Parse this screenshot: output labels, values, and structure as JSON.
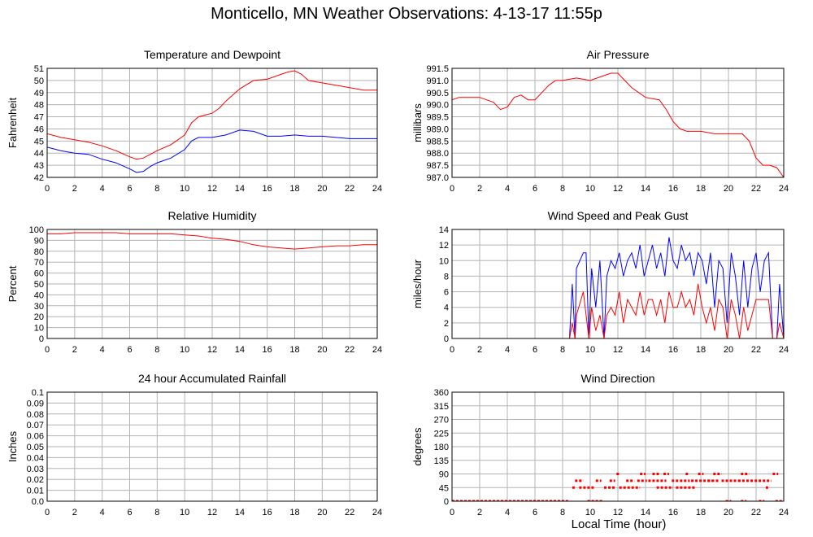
{
  "title": "Monticello, MN Weather Observations: 4-13-17 11:55p",
  "x_axis_label": "Local Time (hour)",
  "colors": {
    "red": "#ff0000",
    "blue": "#0000ff",
    "grid": "#b3b3b3",
    "frame": "#000000"
  },
  "chart_data": [
    {
      "id": "temp",
      "type": "line",
      "title": "Temperature and Dewpoint",
      "ylabel": "Fahrenheit",
      "xlim": [
        0,
        24
      ],
      "ylim": [
        42,
        51
      ],
      "xticks": [
        "0",
        "2",
        "4",
        "6",
        "8",
        "10",
        "12",
        "14",
        "16",
        "18",
        "20",
        "22",
        "24"
      ],
      "yticks": [
        "42",
        "43",
        "44",
        "45",
        "46",
        "47",
        "48",
        "49",
        "50",
        "51"
      ],
      "grid": true,
      "series": [
        {
          "color": "red",
          "x": [
            0,
            1,
            2,
            3,
            4,
            5,
            6,
            6.5,
            7,
            7.5,
            8,
            9,
            10,
            10.5,
            11,
            12,
            12.5,
            13,
            14,
            15,
            16,
            17,
            17.5,
            18,
            18.5,
            19,
            20,
            21,
            22,
            23,
            24
          ],
          "y": [
            45.6,
            45.3,
            45.1,
            44.9,
            44.6,
            44.2,
            43.7,
            43.5,
            43.6,
            43.9,
            44.2,
            44.7,
            45.5,
            46.5,
            47.0,
            47.3,
            47.7,
            48.3,
            49.3,
            50.0,
            50.1,
            50.5,
            50.7,
            50.8,
            50.5,
            50.0,
            49.8,
            49.6,
            49.4,
            49.2,
            49.2
          ]
        },
        {
          "color": "blue",
          "x": [
            0,
            1,
            2,
            3,
            4,
            5,
            6,
            6.5,
            7,
            7.5,
            8,
            9,
            10,
            10.5,
            11,
            12,
            13,
            14,
            15,
            16,
            17,
            18,
            19,
            20,
            21,
            22,
            23,
            24
          ],
          "y": [
            44.5,
            44.2,
            44.0,
            43.9,
            43.5,
            43.2,
            42.7,
            42.4,
            42.5,
            42.9,
            43.2,
            43.6,
            44.3,
            45.0,
            45.3,
            45.3,
            45.5,
            45.9,
            45.8,
            45.4,
            45.4,
            45.5,
            45.4,
            45.4,
            45.3,
            45.2,
            45.2,
            45.2
          ]
        }
      ]
    },
    {
      "id": "pressure",
      "type": "line",
      "title": "Air Pressure",
      "ylabel": "millibars",
      "xlim": [
        0,
        24
      ],
      "ylim": [
        987.0,
        991.5
      ],
      "xticks": [
        "0",
        "2",
        "4",
        "6",
        "8",
        "10",
        "12",
        "14",
        "16",
        "18",
        "20",
        "22",
        "24"
      ],
      "yticks": [
        "987.0",
        "987.5",
        "988.0",
        "988.5",
        "989.0",
        "989.5",
        "990.0",
        "990.5",
        "991.0",
        "991.5"
      ],
      "grid": true,
      "series": [
        {
          "color": "red",
          "x": [
            0,
            0.5,
            1,
            2,
            3,
            3.5,
            4,
            4.5,
            5,
            5.5,
            6,
            6.5,
            7,
            7.5,
            8,
            9,
            10,
            11,
            11.5,
            12,
            12.5,
            13,
            14,
            15,
            15.5,
            16,
            16.5,
            17,
            17.5,
            18,
            19,
            20,
            21,
            21.5,
            22,
            22.5,
            23,
            23.5,
            24
          ],
          "y": [
            990.2,
            990.3,
            990.3,
            990.3,
            990.1,
            989.8,
            989.9,
            990.3,
            990.4,
            990.2,
            990.2,
            990.5,
            990.8,
            991.0,
            991.0,
            991.1,
            991.0,
            991.2,
            991.3,
            991.3,
            991.0,
            990.7,
            990.3,
            990.2,
            989.8,
            989.3,
            989.0,
            988.9,
            988.9,
            988.9,
            988.8,
            988.8,
            988.8,
            988.5,
            987.8,
            987.5,
            987.5,
            987.4,
            987.0
          ]
        }
      ]
    },
    {
      "id": "humidity",
      "type": "line",
      "title": "Relative Humidity",
      "ylabel": "Percent",
      "xlim": [
        0,
        24
      ],
      "ylim": [
        0,
        100
      ],
      "xticks": [
        "0",
        "2",
        "4",
        "6",
        "8",
        "10",
        "12",
        "14",
        "16",
        "18",
        "20",
        "22",
        "24"
      ],
      "yticks": [
        "0",
        "10",
        "20",
        "30",
        "40",
        "50",
        "60",
        "70",
        "80",
        "90",
        "100"
      ],
      "grid": true,
      "series": [
        {
          "color": "red",
          "x": [
            0,
            1,
            2,
            3,
            4,
            5,
            6,
            7,
            8,
            9,
            10,
            11,
            12,
            13,
            14,
            15,
            16,
            17,
            18,
            19,
            20,
            21,
            22,
            23,
            24
          ],
          "y": [
            96,
            96,
            97,
            97,
            97,
            97,
            96,
            96,
            96,
            96,
            95,
            94,
            92,
            91,
            89,
            86,
            84,
            83,
            82,
            83,
            84,
            85,
            85,
            86,
            86
          ]
        }
      ]
    },
    {
      "id": "wind",
      "type": "line",
      "title": "Wind Speed and Peak Gust",
      "ylabel": "miles/hour",
      "xlim": [
        0,
        24
      ],
      "ylim": [
        0,
        14
      ],
      "xticks": [
        "0",
        "2",
        "4",
        "6",
        "8",
        "10",
        "12",
        "14",
        "16",
        "18",
        "20",
        "22",
        "24"
      ],
      "yticks": [
        "0",
        "2",
        "4",
        "6",
        "8",
        "10",
        "12",
        "14"
      ],
      "grid": true,
      "series": [
        {
          "color": "blue",
          "x": [
            0,
            8.5,
            8.7,
            8.9,
            9.0,
            9.5,
            9.7,
            9.9,
            10.1,
            10.4,
            10.7,
            11.0,
            11.2,
            11.5,
            11.8,
            12.1,
            12.4,
            12.7,
            13.0,
            13.3,
            13.6,
            13.9,
            14.2,
            14.5,
            14.8,
            15.1,
            15.4,
            15.7,
            16.0,
            16.3,
            16.6,
            16.9,
            17.2,
            17.5,
            17.8,
            18.1,
            18.4,
            18.7,
            19.0,
            19.3,
            19.6,
            19.9,
            20.2,
            20.5,
            20.8,
            21.1,
            21.4,
            21.7,
            22.0,
            22.3,
            22.6,
            22.9,
            23.2,
            23.5,
            23.7,
            24
          ],
          "y": [
            0,
            0,
            7,
            0,
            9,
            11,
            11,
            0,
            9,
            4,
            10,
            0,
            8,
            10,
            9,
            11,
            8,
            10,
            11,
            9,
            12,
            8,
            10,
            12,
            9,
            11,
            8,
            13,
            10,
            9,
            12,
            10,
            11,
            8,
            11,
            10,
            7,
            11,
            4,
            10,
            9,
            2,
            11,
            8,
            3,
            10,
            4,
            9,
            11,
            6,
            10,
            11,
            0,
            0,
            7,
            0
          ]
        },
        {
          "color": "red",
          "x": [
            0,
            8.5,
            8.7,
            8.9,
            9.0,
            9.5,
            9.7,
            9.9,
            10.1,
            10.4,
            10.7,
            11.0,
            11.2,
            11.5,
            11.8,
            12.1,
            12.4,
            12.7,
            13.0,
            13.3,
            13.6,
            13.9,
            14.2,
            14.5,
            14.8,
            15.1,
            15.4,
            15.7,
            16.0,
            16.3,
            16.6,
            16.9,
            17.2,
            17.5,
            17.8,
            18.1,
            18.4,
            18.7,
            19.0,
            19.3,
            19.6,
            19.9,
            20.2,
            20.5,
            20.8,
            21.1,
            21.4,
            21.7,
            22.0,
            22.3,
            22.6,
            22.9,
            23.2,
            23.5,
            23.7,
            24
          ],
          "y": [
            0,
            0,
            2,
            0,
            3,
            6,
            3,
            0,
            4,
            1,
            3,
            0,
            3,
            4,
            3,
            6,
            2,
            5,
            4,
            3,
            6,
            3,
            5,
            5,
            3,
            5,
            2,
            6,
            4,
            4,
            6,
            4,
            5,
            3,
            7,
            4,
            2,
            4,
            1,
            5,
            4,
            0,
            5,
            3,
            0,
            4,
            1,
            3,
            5,
            5,
            5,
            5,
            0,
            0,
            2,
            0
          ]
        }
      ]
    },
    {
      "id": "rain",
      "type": "line",
      "title": "24 hour Accumulated Rainfall",
      "ylabel": "Inches",
      "xlim": [
        0,
        24
      ],
      "ylim": [
        0,
        0.1
      ],
      "xticks": [
        "0",
        "2",
        "4",
        "6",
        "8",
        "10",
        "12",
        "14",
        "16",
        "18",
        "20",
        "22",
        "24"
      ],
      "yticks": [
        "0.0",
        "0.01",
        "0.02",
        "0.03",
        "0.04",
        "0.05",
        "0.06",
        "0.07",
        "0.08",
        "0.09",
        "0.1"
      ],
      "grid": true,
      "series": [
        {
          "color": "blue",
          "x": [
            0,
            24
          ],
          "y": [
            0,
            0
          ]
        },
        {
          "color": "red",
          "x": [
            0,
            24
          ],
          "y": [
            0,
            0
          ]
        }
      ]
    },
    {
      "id": "direction",
      "type": "scatter",
      "title": "Wind Direction",
      "ylabel": "degrees",
      "xlim": [
        0,
        24
      ],
      "ylim": [
        0,
        360
      ],
      "xticks": [
        "0",
        "2",
        "4",
        "6",
        "8",
        "10",
        "12",
        "14",
        "16",
        "18",
        "20",
        "22",
        "24"
      ],
      "yticks": [
        "0",
        "45",
        "90",
        "135",
        "180",
        "225",
        "270",
        "315",
        "360"
      ],
      "grid": true,
      "series": [
        {
          "color": "red",
          "segments": [
            {
              "x0": 0,
              "x1": 8.4,
              "y": 0
            },
            {
              "x0": 8.9,
              "x1": 9.5,
              "y": 67.5
            },
            {
              "x0": 8.7,
              "x1": 8.9,
              "y": 45
            },
            {
              "x0": 9.2,
              "x1": 10.3,
              "y": 45
            },
            {
              "x0": 9.8,
              "x1": 10.9,
              "y": 0
            },
            {
              "x0": 10.4,
              "x1": 10.8,
              "y": 67.5
            },
            {
              "x0": 11.0,
              "x1": 11.8,
              "y": 45
            },
            {
              "x0": 11.4,
              "x1": 11.8,
              "y": 67.5
            },
            {
              "x0": 11.9,
              "x1": 12.1,
              "y": 90
            },
            {
              "x0": 12.1,
              "x1": 13.6,
              "y": 45
            },
            {
              "x0": 12.6,
              "x1": 13.2,
              "y": 67.5
            },
            {
              "x0": 13.4,
              "x1": 14.1,
              "y": 67.5
            },
            {
              "x0": 13.6,
              "x1": 14.0,
              "y": 90
            },
            {
              "x0": 14.2,
              "x1": 15.5,
              "y": 67.5
            },
            {
              "x0": 14.5,
              "x1": 15.0,
              "y": 90
            },
            {
              "x0": 14.8,
              "x1": 16.0,
              "y": 45
            },
            {
              "x0": 15.3,
              "x1": 15.7,
              "y": 90
            },
            {
              "x0": 15.9,
              "x1": 17.2,
              "y": 67.5
            },
            {
              "x0": 16.2,
              "x1": 17.6,
              "y": 45
            },
            {
              "x0": 16.9,
              "x1": 17.1,
              "y": 90
            },
            {
              "x0": 17.3,
              "x1": 18.8,
              "y": 67.5
            },
            {
              "x0": 17.8,
              "x1": 18.2,
              "y": 90
            },
            {
              "x0": 18.5,
              "x1": 19.3,
              "y": 67.5
            },
            {
              "x0": 18.9,
              "x1": 19.5,
              "y": 90
            },
            {
              "x0": 19.5,
              "x1": 20.7,
              "y": 67.5
            },
            {
              "x0": 19.8,
              "x1": 20.2,
              "y": 0
            },
            {
              "x0": 20.7,
              "x1": 21.6,
              "y": 67.5
            },
            {
              "x0": 20.9,
              "x1": 21.5,
              "y": 90
            },
            {
              "x0": 20.9,
              "x1": 21.3,
              "y": 0
            },
            {
              "x0": 21.6,
              "x1": 23.1,
              "y": 67.5
            },
            {
              "x0": 22.2,
              "x1": 22.6,
              "y": 0
            },
            {
              "x0": 22.7,
              "x1": 23.0,
              "y": 45
            },
            {
              "x0": 23.2,
              "x1": 23.6,
              "y": 90
            },
            {
              "x0": 23.4,
              "x1": 24,
              "y": 0
            }
          ]
        }
      ]
    }
  ]
}
